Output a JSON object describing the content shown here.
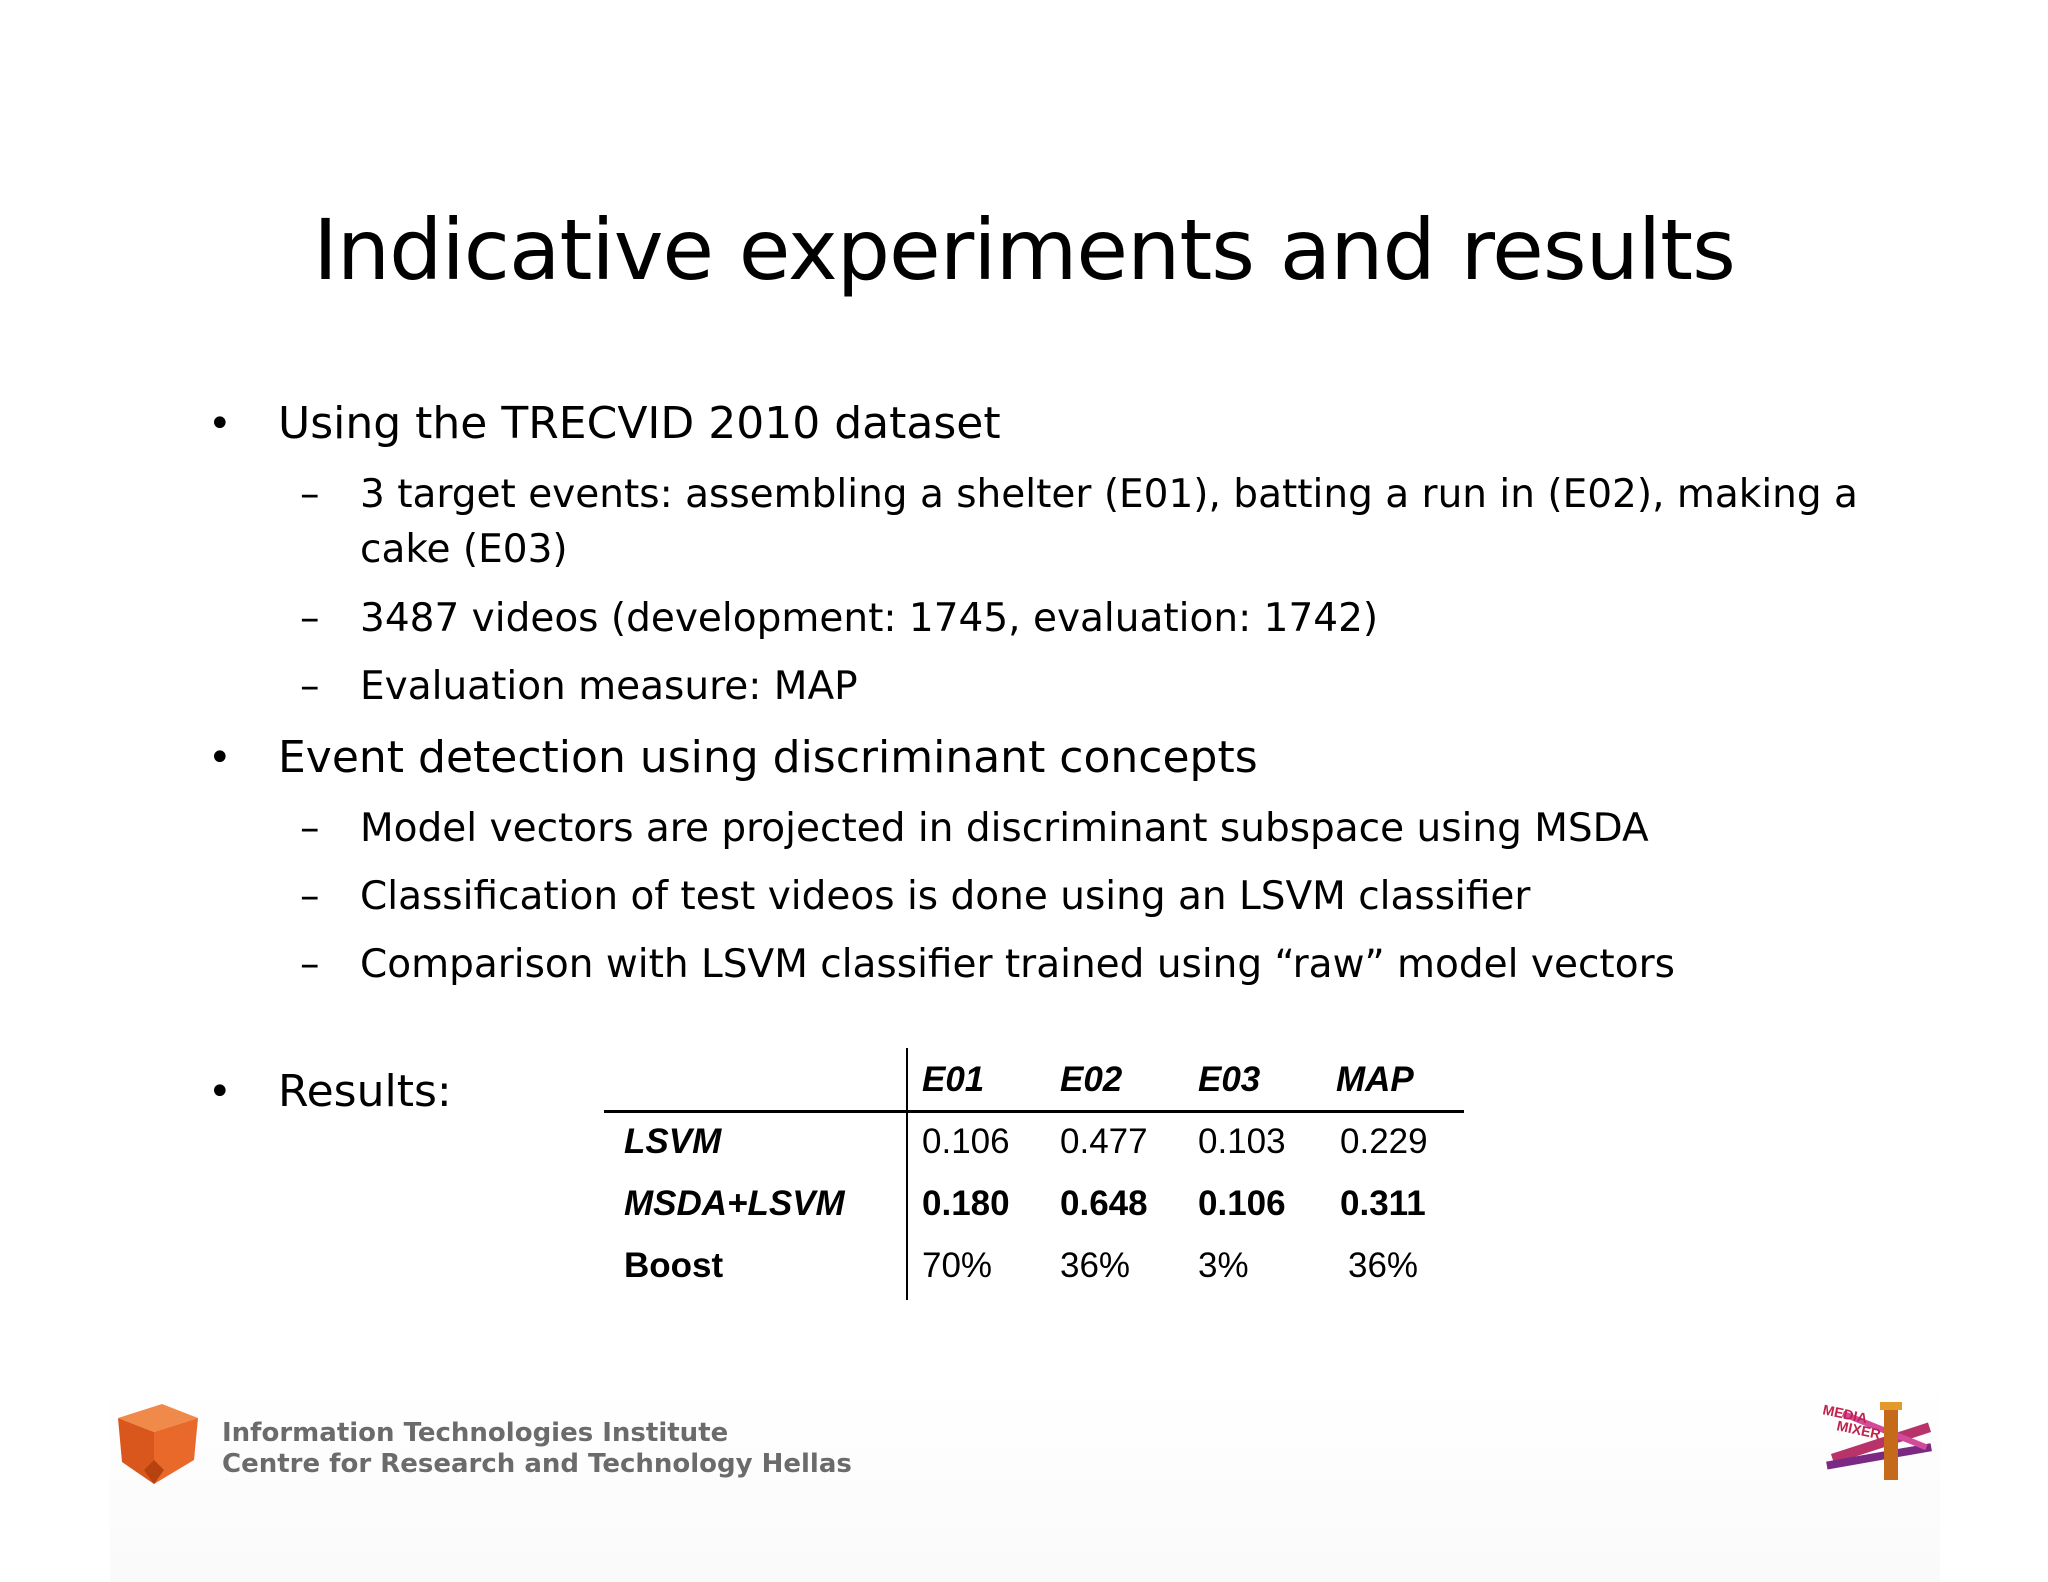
{
  "slide": {
    "title": "Indicative experiments and results",
    "bullets": [
      {
        "text": "Using the TRECVID 2010 dataset",
        "sub": [
          "3 target events: assembling a shelter (E01), batting a run in (E02), making a",
          "cake (E03)",
          "3487 videos (development: 1745, evaluation: 1742)",
          "Evaluation measure: MAP"
        ]
      },
      {
        "text": "Event detection using discriminant concepts",
        "sub": [
          "Model vectors are projected in discriminant subspace using MSDA",
          "Classification of test videos is done using an LSVM classifier",
          "Comparison with LSVM classifier trained using “raw” model vectors"
        ]
      },
      {
        "text": "Results:"
      }
    ],
    "bullet_mark": "•",
    "sub_mark": "–"
  },
  "results_table": {
    "columns": [
      "E01",
      "E02",
      "E03",
      "MAP"
    ],
    "rows": [
      {
        "label": "LSVM",
        "values": [
          "0.106",
          "0.477",
          "0.103",
          "0.229"
        ]
      },
      {
        "label": "MSDA+LSVM",
        "values": [
          "0.180",
          "0.648",
          "0.106",
          "0.311"
        ]
      },
      {
        "label": "Boost",
        "values": [
          "70%",
          "36%",
          "3%",
          "36%"
        ]
      }
    ]
  },
  "footer": {
    "line1": "Information Technologies Institute",
    "line2": "Centre for Research and Technology Hellas",
    "right_logo_text": "MEDIA MIXER",
    "left_logo_color": "#e8692a",
    "text_color": "#6b6b6b"
  }
}
